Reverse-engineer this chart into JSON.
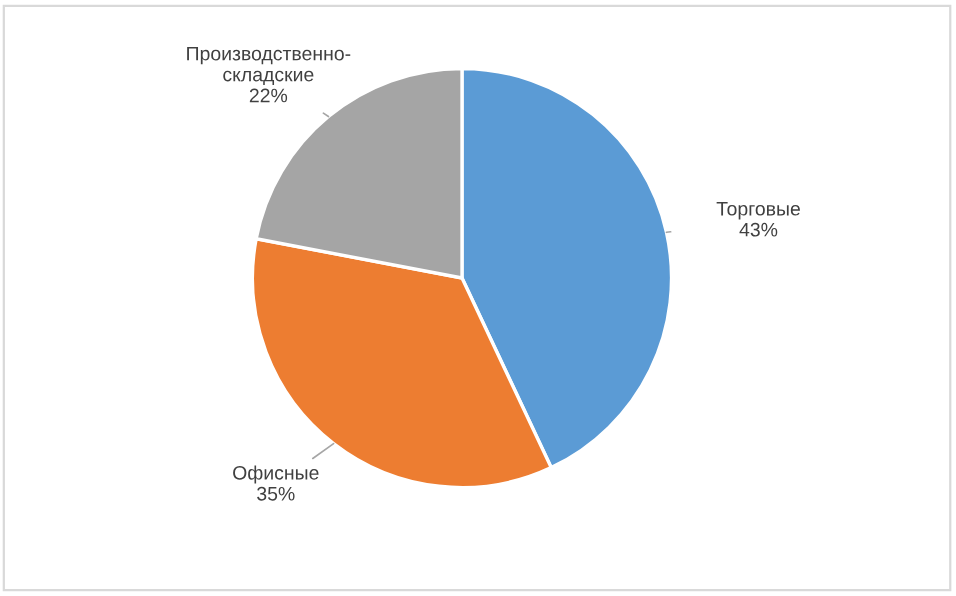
{
  "chart_data": {
    "type": "pie",
    "categories": [
      "Торговые",
      "Офисные",
      "Производственно-складские"
    ],
    "values": [
      43,
      35,
      22
    ],
    "colors": [
      "#5b9bd5",
      "#ed7d31",
      "#a5a5a5"
    ],
    "value_labels": [
      "43%",
      "35%",
      "22%"
    ],
    "legend": false
  }
}
